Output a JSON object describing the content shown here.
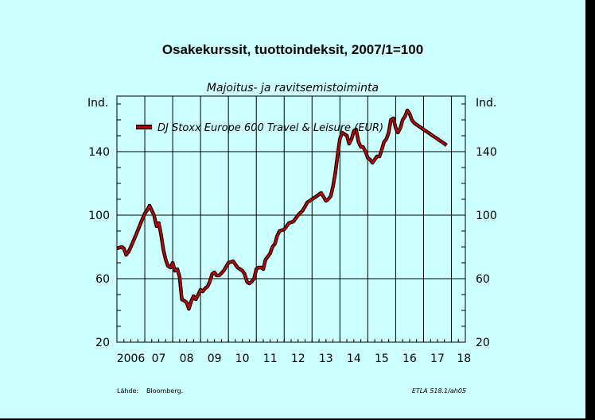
{
  "chart_data": {
    "type": "line",
    "title": "Osakekurssit, tuottoindeksit, 2007/1=100",
    "subtitle": "Majoitus- ja ravitsemistoiminta",
    "ylabel_left": "Ind.",
    "ylabel_right": "Ind.",
    "ylim": [
      20,
      175
    ],
    "yticks": [
      20,
      60,
      100,
      140
    ],
    "xlim": [
      2006.0,
      2018.5
    ],
    "xtick_labels": [
      "2006",
      "07",
      "08",
      "09",
      "10",
      "11",
      "12",
      "13",
      "14",
      "15",
      "16",
      "17",
      "18"
    ],
    "grid": true,
    "legend_position": "top-left",
    "source_label": "Lähde:",
    "source_value": "Bloomberg.",
    "footer_code": "ETLA 518.1/ah05",
    "colors": {
      "line": "#cc0000",
      "line_outline": "#000000",
      "background": "#ccffff",
      "frame": "#000000"
    },
    "series": [
      {
        "name": "DJ Stoxx Europe 600 Travel & Leisure (EUR)",
        "x": [
          2006.0,
          2006.17,
          2006.25,
          2006.33,
          2006.42,
          2006.5,
          2006.67,
          2006.83,
          2007.0,
          2007.08,
          2007.17,
          2007.25,
          2007.33,
          2007.42,
          2007.5,
          2007.58,
          2007.67,
          2007.75,
          2007.83,
          2007.92,
          2008.0,
          2008.08,
          2008.17,
          2008.25,
          2008.33,
          2008.42,
          2008.5,
          2008.58,
          2008.67,
          2008.75,
          2008.83,
          2008.92,
          2009.0,
          2009.08,
          2009.17,
          2009.25,
          2009.33,
          2009.42,
          2009.5,
          2009.58,
          2009.67,
          2009.83,
          2010.0,
          2010.17,
          2010.33,
          2010.5,
          2010.58,
          2010.67,
          2010.75,
          2010.83,
          2010.92,
          2011.0,
          2011.08,
          2011.17,
          2011.25,
          2011.33,
          2011.42,
          2011.5,
          2011.58,
          2011.67,
          2011.75,
          2011.83,
          2012.0,
          2012.17,
          2012.33,
          2012.5,
          2012.67,
          2012.83,
          2013.0,
          2013.17,
          2013.33,
          2013.5,
          2013.58,
          2013.67,
          2013.75,
          2013.83,
          2013.92,
          2014.0,
          2014.08,
          2014.17,
          2014.25,
          2014.33,
          2014.42,
          2014.5,
          2014.58,
          2014.67,
          2014.75,
          2014.83,
          2014.92,
          2015.0,
          2015.08,
          2015.17,
          2015.25,
          2015.33,
          2015.42,
          2015.5,
          2015.58,
          2015.67,
          2015.75,
          2015.83,
          2015.92,
          2016.0,
          2016.08,
          2016.17,
          2016.25,
          2016.33,
          2016.42,
          2016.5,
          2016.58,
          2016.67,
          2016.75,
          2016.83,
          2016.92,
          2017.0,
          2017.08,
          2017.17,
          2017.25,
          2017.33,
          2017.42,
          2017.5,
          2017.58,
          2017.67,
          2017.75,
          2017.83
        ],
        "y": [
          79,
          80,
          79,
          75,
          77,
          80,
          87,
          94,
          101,
          103,
          106,
          103,
          100,
          93,
          95,
          88,
          78,
          72,
          68,
          67,
          70,
          65,
          66,
          61,
          47,
          46,
          45,
          41,
          46,
          49,
          47,
          50,
          53,
          52,
          54,
          55,
          58,
          63,
          64,
          62,
          62,
          65,
          70,
          71,
          67,
          65,
          63,
          58,
          57,
          58,
          60,
          66,
          67,
          67,
          66,
          72,
          74,
          76,
          80,
          82,
          87,
          90,
          91,
          95,
          96,
          100,
          103,
          108,
          110,
          112,
          114,
          109,
          110,
          112,
          118,
          126,
          138,
          148,
          152,
          151,
          150,
          145,
          148,
          153,
          154,
          146,
          143,
          143,
          140,
          136,
          135,
          133,
          135,
          137,
          137,
          141,
          146,
          148,
          152,
          160,
          161,
          155,
          152,
          155,
          160,
          162,
          166,
          164,
          160,
          158,
          157,
          156,
          155,
          154,
          153,
          152,
          151,
          150,
          149,
          148,
          147,
          146,
          145,
          144
        ]
      }
    ]
  }
}
